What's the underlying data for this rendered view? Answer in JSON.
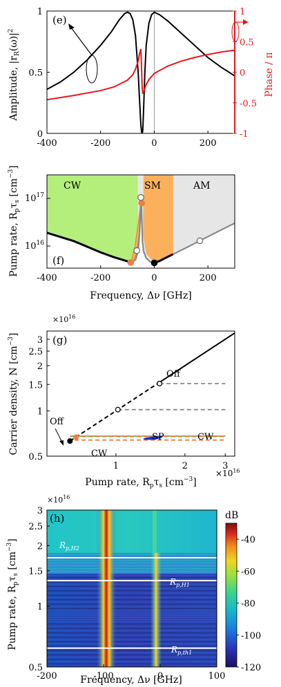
{
  "chart_data": [
    {
      "panel": "(e)",
      "type": "line",
      "xlim": [
        -400,
        300
      ],
      "x_ticks": [
        -400,
        -200,
        0,
        200
      ],
      "ylabel_left": "Amplitude, |r_R(ω)|²",
      "ylim_left": [
        0,
        1
      ],
      "y_ticks_left": [
        0,
        0.5,
        1
      ],
      "ylabel_right": "Phase / π",
      "ylim_right": [
        -1,
        1
      ],
      "y_ticks_right": [
        -1,
        -0.5,
        0,
        0.5,
        1
      ],
      "colors": {
        "amplitude": "#000000",
        "phase": "#e8171b"
      },
      "series": [
        {
          "axis": "left",
          "x": [
            -400,
            -350,
            -300,
            -250,
            -200,
            -160,
            -130,
            -110,
            -100,
            -90,
            -80,
            -70,
            -60,
            -55,
            -50,
            -47,
            -45,
            -43,
            -40,
            -35,
            -30,
            -20,
            -10,
            0,
            20,
            50,
            100,
            150,
            200,
            250,
            300
          ],
          "y": [
            0.36,
            0.42,
            0.5,
            0.6,
            0.72,
            0.83,
            0.93,
            0.98,
            0.99,
            0.98,
            0.93,
            0.8,
            0.5,
            0.28,
            0.07,
            0.01,
            0.0,
            0.02,
            0.18,
            0.5,
            0.72,
            0.9,
            0.97,
            0.99,
            0.97,
            0.92,
            0.82,
            0.72,
            0.62,
            0.54,
            0.47
          ]
        },
        {
          "axis": "right",
          "x": [
            -400,
            -300,
            -200,
            -150,
            -100,
            -80,
            -70,
            -60,
            -55,
            -50,
            -48,
            -45,
            -43,
            -40,
            -30,
            -20,
            0,
            50,
            100,
            150,
            200,
            250,
            300
          ],
          "y": [
            -0.45,
            -0.38,
            -0.3,
            -0.24,
            -0.13,
            -0.04,
            0.05,
            0.18,
            0.3,
            0.38,
            0.15,
            -0.25,
            -0.35,
            -0.32,
            -0.2,
            -0.12,
            -0.02,
            0.1,
            0.18,
            0.24,
            0.29,
            0.33,
            0.36
          ]
        }
      ],
      "annotations": [
        {
          "x": 0,
          "type": "vline",
          "color": "#999999"
        }
      ]
    },
    {
      "panel": "(f)",
      "type": "area",
      "xlabel": "Frequency, Δν [GHz]",
      "ylabel": "Pump rate, R_p τ_s [cm⁻³]",
      "xlim": [
        -400,
        300
      ],
      "x_ticks": [
        -400,
        -200,
        0,
        200
      ],
      "ylim": [
        5000000000000000.0,
        2.2e+17
      ],
      "y_scale": "log",
      "y_tick_labels": [
        "10¹⁶",
        "10¹⁷"
      ],
      "regions": [
        {
          "label": "CW",
          "color": "#b3ef7a"
        },
        {
          "label": "SM",
          "color": "#fbb05b"
        },
        {
          "label": "AM",
          "color": "#e6e6e6"
        }
      ],
      "threshold_curve_black": {
        "x": [
          -400,
          -300,
          -200,
          -150,
          -100,
          -85
        ],
        "y": [
          2.1e+16,
          1.5e+16,
          9500000000000000.0,
          7800000000000000.0,
          6600000000000000.0,
          6300000000000000.0
        ]
      },
      "threshold_curve_gray": {
        "x": [
          -85,
          -70,
          -60,
          -55,
          -52,
          -50,
          -48,
          -46,
          -44,
          -40,
          -30,
          -15,
          0
        ],
        "y": [
          6300000000000000.0,
          7000000000000000.0,
          1e+16,
          2e+16,
          4e+16,
          8.8e+16,
          6e+16,
          3e+16,
          1.5e+16,
          1e+16,
          7500000000000000.0,
          6500000000000000.0,
          6200000000000000.0
        ]
      },
      "right_curve_black": {
        "x": [
          0,
          20,
          40,
          70
        ],
        "y": [
          6200000000000000.0,
          6700000000000000.0,
          7500000000000000.0,
          8800000000000000.0
        ]
      },
      "right_curve_gray": {
        "x": [
          70,
          120,
          170,
          220,
          260,
          300
        ],
        "y": [
          8800000000000000.0,
          1.15e+16,
          1.52e+16,
          2e+16,
          2.5e+16,
          3.1e+16
        ]
      },
      "markers": [
        {
          "x": -88,
          "y": 6300000000000000.0,
          "style": "filled",
          "color": "#f47c3c"
        },
        {
          "x": -47,
          "y": 7e+16,
          "style": "filled",
          "color": "#f47c3c"
        },
        {
          "x": -65,
          "y": 1.02e+16,
          "style": "open"
        },
        {
          "x": -50,
          "y": 8.8e+16,
          "style": "open"
        },
        {
          "x": 0,
          "y": 6200000000000000.0,
          "style": "filled",
          "color": "#000000"
        },
        {
          "x": 170,
          "y": 1.52e+16,
          "style": "open"
        }
      ]
    },
    {
      "panel": "(g)",
      "type": "line",
      "xlabel": "Pump rate, R_p τ_s [cm⁻³]",
      "ylabel": "Carrier density, N [cm⁻³]",
      "x_scale": "log",
      "y_scale": "log",
      "xlim": [
        5000000000000000.0,
        3.3e+16
      ],
      "ylim": [
        5000000000000000.0,
        3.4e+16
      ],
      "x_ticks": [
        1e+16,
        2e+16,
        3e+16
      ],
      "x_tick_labels": [
        "1",
        "2",
        "3"
      ],
      "y_ticks": [
        5000000000000000.0,
        1e+16,
        1.5e+16,
        2e+16,
        2.5e+16,
        3e+16
      ],
      "y_tick_labels": [
        "0.5",
        "1",
        "1.5",
        "2",
        "2.5",
        "3"
      ],
      "exponent_label": "×10¹⁶",
      "series": [
        {
          "style": "solid",
          "color": "#000000",
          "x": [
            1.55e+16,
            3.3e+16
          ],
          "y": [
            1.55e+16,
            3.3e+16
          ]
        },
        {
          "style": "dashed",
          "color": "#000000",
          "x": [
            6300000000000000.0,
            1.55e+16
          ],
          "y": [
            6300000000000000.0,
            1.55e+16
          ]
        },
        {
          "style": "dashed",
          "color": "#888888",
          "x": [
            1.55e+16,
            3e+16
          ],
          "y": [
            1.52e+16,
            1.52e+16
          ]
        },
        {
          "style": "dashed",
          "color": "#888888",
          "x": [
            1.02e+16,
            3e+16
          ],
          "y": [
            1.02e+16,
            1.02e+16
          ]
        },
        {
          "style": "solid",
          "color": "#6ab04c",
          "x": [
            6300000000000000.0,
            3e+16
          ],
          "y": [
            6800000000000000.0,
            6800000000000000.0
          ]
        },
        {
          "style": "dashed",
          "color": "#f47c3c",
          "x": [
            6600000000000000.0,
            3e+16
          ],
          "y": [
            6750000000000000.0,
            6750000000000000.0
          ]
        },
        {
          "style": "dashed",
          "color": "#f47c3c",
          "x": [
            6600000000000000.0,
            3e+16
          ],
          "y": [
            6400000000000000.0,
            6400000000000000.0
          ]
        }
      ],
      "markers": [
        {
          "x": 6300000000000000.0,
          "y": 6300000000000000.0,
          "style": "filled",
          "color": "#000000"
        },
        {
          "x": 6700000000000000.0,
          "y": 6700000000000000.0,
          "style": "filled",
          "color": "#f47c3c"
        },
        {
          "x": 1.02e+16,
          "y": 1.02e+16,
          "style": "open"
        },
        {
          "x": 1.55e+16,
          "y": 1.52e+16,
          "style": "open"
        }
      ],
      "text_labels": [
        {
          "text": "Off",
          "x": 2.1e+16,
          "y": 2.05e+16
        },
        {
          "text": "Off",
          "x": 5400000000000000.0,
          "y": 8500000000000000.0
        },
        {
          "text": "SP",
          "x": 1.45e+16,
          "y": 7300000000000000.0
        },
        {
          "text": "CW",
          "x": 2.05e+16,
          "y": 7300000000000000.0
        },
        {
          "text": "CW",
          "x": 8500000000000000.0,
          "y": 6000000000000000.0
        }
      ]
    },
    {
      "panel": "(h)",
      "type": "heatmap",
      "xlabel": "Frequency, Δν [GHz]",
      "ylabel": "Pump rate, R_p τ_s [cm⁻³]",
      "xlim": [
        -200,
        100
      ],
      "x_ticks": [
        -200,
        -100,
        0,
        100
      ],
      "y_scale": "log",
      "ylim": [
        5000000000000000.0,
        3e+16
      ],
      "y_tick_labels": [
        "0.5",
        "1",
        "1.5",
        "2",
        "2.5",
        "3"
      ],
      "exponent_label": "×10¹⁶",
      "colorbar_label": "dB",
      "colorbar_ticks": [
        -40,
        -60,
        -80,
        -100,
        -120
      ],
      "colorbar_range": [
        -120,
        -30
      ],
      "hlines": [
        1.74e+16,
        1.34e+16,
        6200000000000000.0
      ],
      "line_labels": [
        "R_p,H2",
        "R_p,H1",
        "R_p,th1"
      ]
    }
  ],
  "labels": {
    "e_panel": "(e)",
    "e_ylabel": "Amplitude, |r",
    "e_ylabel_sub": "R",
    "e_ylabel_end": "(ω)|",
    "e_ylabel_sup": "2",
    "e_ylabel_right": "Phase / π",
    "e_xt": [
      "-400",
      "-200",
      "0",
      "200"
    ],
    "e_yt_left": [
      "0",
      "0.5",
      "1"
    ],
    "e_yt_right": [
      "-1",
      "-0.5",
      "0",
      "0.5",
      "1"
    ],
    "f_panel": "(f)",
    "f_ylabel": "Pump rate, R",
    "f_ylabel_sub": "p",
    "f_ylabel_mid": "τ",
    "f_ylabel_sub2": "s",
    "f_ylabel_end": " [cm",
    "f_ylabel_sup": "−3",
    "f_ylabel_close": "]",
    "f_xlabel": "Frequency, Δν [GHz]",
    "f_xt": [
      "-400",
      "-200",
      "0",
      "200"
    ],
    "f_yt": [
      "10",
      "10"
    ],
    "f_yt_sup": [
      "16",
      "17"
    ],
    "f_regions": [
      "CW",
      "SM",
      "AM"
    ],
    "g_panel": "(g)",
    "g_ylabel": "Carrier density, N [cm",
    "g_ylabel_sup": "−3",
    "g_ylabel_close": "]",
    "g_xlabel": "Pump rate, R",
    "g_xlabel_sub": "p",
    "g_xlabel_mid": "τ",
    "g_xlabel_sub2": "s",
    "g_xlabel_end": " [cm",
    "g_xlabel_sup": "−3",
    "g_xlabel_close": "]",
    "g_exp": "×10",
    "g_exp_sup": "16",
    "g_yt": [
      "0.5",
      "1",
      "1.5",
      "2",
      "2.5",
      "3"
    ],
    "g_xt": [
      "1",
      "2",
      "3"
    ],
    "g_xexp": "×10",
    "g_xexp_sup": "16",
    "g_off_top": "Off",
    "g_off_left": "Off",
    "g_sp": "SP",
    "g_cw_right": "CW",
    "g_cw_left": "CW",
    "h_panel": "(h)",
    "h_exp": "×10",
    "h_exp_sup": "16",
    "h_yt": [
      "3",
      "2.5",
      "2",
      "1.5",
      "1",
      "0.5"
    ],
    "h_xt": [
      "-200",
      "-100",
      "0",
      "100"
    ],
    "h_ylabel": "Pump rate, R",
    "h_ylabel_sub": "p",
    "h_ylabel_mid": "τ",
    "h_ylabel_sub2": "s",
    "h_ylabel_end": " [cm",
    "h_ylabel_sup": "−3",
    "h_ylabel_close": "]",
    "h_xlabel": "Frequency, Δν [GHz]",
    "h_cb_unit": "dB",
    "h_cb_t": [
      "-40",
      "-60",
      "-80",
      "-100",
      "-120"
    ],
    "h_lab_h2": "R",
    "h_lab_h2_sub": "p,H2",
    "h_lab_h1": "R",
    "h_lab_h1_sub": "p,H1",
    "h_lab_th1": "R",
    "h_lab_th1_sub": "p,th1"
  }
}
